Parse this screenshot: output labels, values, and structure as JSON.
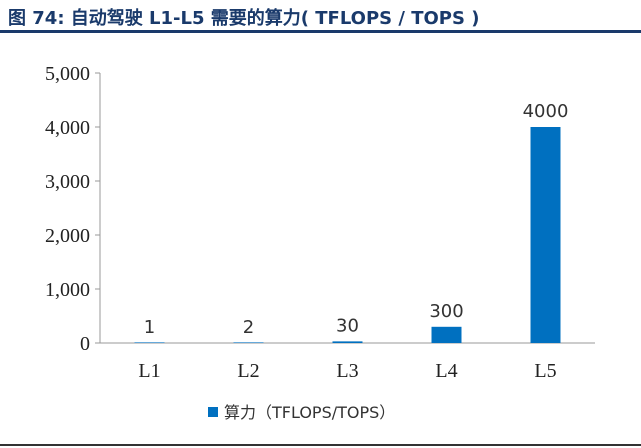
{
  "header": {
    "title": "图 74: 自动驾驶 L1-L5 需要的算力( TFLOPS / TOPS )"
  },
  "chart_data": {
    "type": "bar",
    "categories": [
      "L1",
      "L2",
      "L3",
      "L4",
      "L5"
    ],
    "series": [
      {
        "name": "算力（TFLOPS/TOPS）",
        "values": [
          1,
          2,
          30,
          300,
          4000
        ],
        "color": "#0070c0"
      }
    ],
    "data_labels": [
      "1",
      "2",
      "30",
      "300",
      "4000"
    ],
    "yticks": [
      0,
      1000,
      2000,
      3000,
      4000,
      5000
    ],
    "ytick_labels": [
      "0",
      "1,000",
      "2,000",
      "3,000",
      "4,000",
      "5,000"
    ],
    "ylim": [
      0,
      5000
    ],
    "grid": false,
    "legend_position": "bottom",
    "title": "",
    "xlabel": "",
    "ylabel": ""
  }
}
